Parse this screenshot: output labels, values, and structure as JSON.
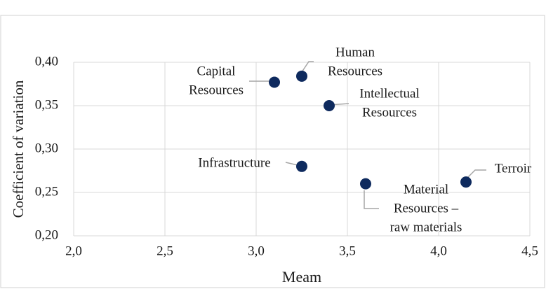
{
  "chart_data": {
    "type": "scatter",
    "x_label": "Meam",
    "y_label": "Coefficient of variation",
    "color": "#0e2a5e",
    "grid": true,
    "xlim": [
      2.0,
      4.5
    ],
    "xticks": [
      {
        "value": 2.0,
        "label": "2,0"
      },
      {
        "value": 2.5,
        "label": "2,5"
      },
      {
        "value": 3.0,
        "label": "3,0"
      },
      {
        "value": 3.5,
        "label": "3,5"
      },
      {
        "value": 4.0,
        "label": "4,0"
      },
      {
        "value": 4.5,
        "label": "4,5"
      }
    ],
    "ylim": [
      0.2,
      0.4
    ],
    "yticks": [
      {
        "value": 0.2,
        "label": "0,20"
      },
      {
        "value": 0.25,
        "label": "0,25"
      },
      {
        "value": 0.3,
        "label": "0,30"
      },
      {
        "value": 0.35,
        "label": "0,35"
      },
      {
        "value": 0.4,
        "label": "0,40"
      }
    ],
    "point_labels": [
      [
        "Capital",
        "Resources"
      ],
      [
        "Human",
        "Resources"
      ],
      [
        "Intellectual",
        "Resources"
      ],
      [
        "Infrastructure"
      ],
      [
        "Material",
        "Resources –",
        "raw materials"
      ],
      [
        "Terroir"
      ]
    ],
    "x": [
      3.1,
      3.25,
      3.4,
      3.25,
      3.6,
      4.15
    ],
    "values": [
      0.377,
      0.384,
      0.35,
      0.28,
      0.26,
      0.262
    ]
  }
}
